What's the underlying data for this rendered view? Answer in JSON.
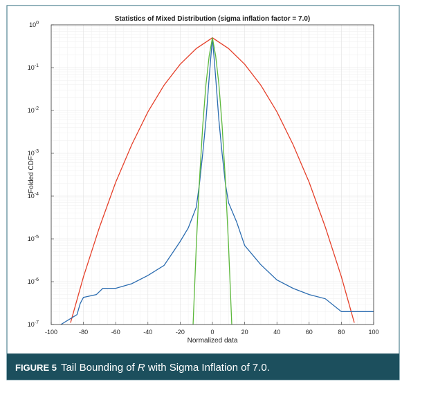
{
  "chart_data": {
    "type": "line",
    "title": "Statistics of Mixed Distribution (sigma inflation factor = 7.0)",
    "x_label": "Normalized data",
    "y_label": "Folded CDF",
    "y_scale": "log",
    "grid": true,
    "minor_grid": true,
    "xlim": [
      -100,
      100
    ],
    "xticks": [
      -100,
      -80,
      -60,
      -40,
      -20,
      0,
      20,
      40,
      60,
      80,
      100
    ],
    "ylim": [
      1e-07,
      1
    ],
    "yticks": [
      {
        "value": 1,
        "label": "10",
        "exp": "0"
      },
      {
        "value": 0.1,
        "label": "10",
        "exp": "-1"
      },
      {
        "value": 0.01,
        "label": "10",
        "exp": "-2"
      },
      {
        "value": 0.001,
        "label": "10",
        "exp": "-3"
      },
      {
        "value": 0.0001,
        "label": "10",
        "exp": "-4"
      },
      {
        "value": 1e-05,
        "label": "10",
        "exp": "-5"
      },
      {
        "value": 1e-06,
        "label": "10",
        "exp": "-6"
      },
      {
        "value": 1e-07,
        "label": "10",
        "exp": "-7"
      }
    ],
    "series": [
      {
        "color": "#e5402a",
        "x": [
          -88,
          -80,
          -70,
          -60,
          -50,
          -40,
          -30,
          -20,
          -10,
          0,
          10,
          20,
          30,
          40,
          50,
          60,
          70,
          80,
          88
        ],
        "values": [
          1.1e-07,
          1.3e-06,
          1.9e-05,
          0.00021,
          0.0016,
          0.0093,
          0.039,
          0.12,
          0.28,
          0.5,
          0.28,
          0.12,
          0.039,
          0.0093,
          0.0016,
          0.00021,
          1.9e-05,
          1.3e-06,
          1.1e-07
        ]
      },
      {
        "color": "#2b6cb0",
        "x": [
          -94,
          -84,
          -82,
          -80,
          -72,
          -68,
          -60,
          -50,
          -40,
          -30,
          -20,
          -15,
          -10,
          -8,
          -6,
          -4,
          -2,
          0,
          2,
          4,
          6,
          8,
          10,
          15,
          20,
          30,
          40,
          50,
          60,
          70,
          80,
          100
        ],
        "values": [
          1e-07,
          1.7e-07,
          3.1e-07,
          4.3e-07,
          5e-07,
          7e-07,
          7e-07,
          9e-07,
          1.4e-06,
          2.4e-06,
          8.7e-06,
          1.8e-05,
          5.5e-05,
          0.0002,
          0.001,
          0.006,
          0.06,
          0.5,
          0.06,
          0.006,
          0.001,
          0.0002,
          7e-05,
          2.5e-05,
          7e-06,
          2.5e-06,
          1.1e-06,
          7e-07,
          5e-07,
          4e-07,
          2e-07,
          2e-07
        ]
      },
      {
        "color": "#5cb83c",
        "x": [
          -12,
          -10,
          -8,
          -6,
          -4,
          -2,
          0,
          2,
          4,
          6,
          8,
          10,
          12
        ],
        "values": [
          1e-07,
          7e-06,
          0.00025,
          0.0045,
          0.041,
          0.19,
          0.5,
          0.19,
          0.041,
          0.0045,
          0.00025,
          7e-06,
          1e-07
        ]
      }
    ]
  },
  "caption": {
    "label": "FIGURE 5",
    "parts": [
      "Tail Bounding of ",
      "R",
      " with Sigma Inflation of 7.0."
    ]
  }
}
